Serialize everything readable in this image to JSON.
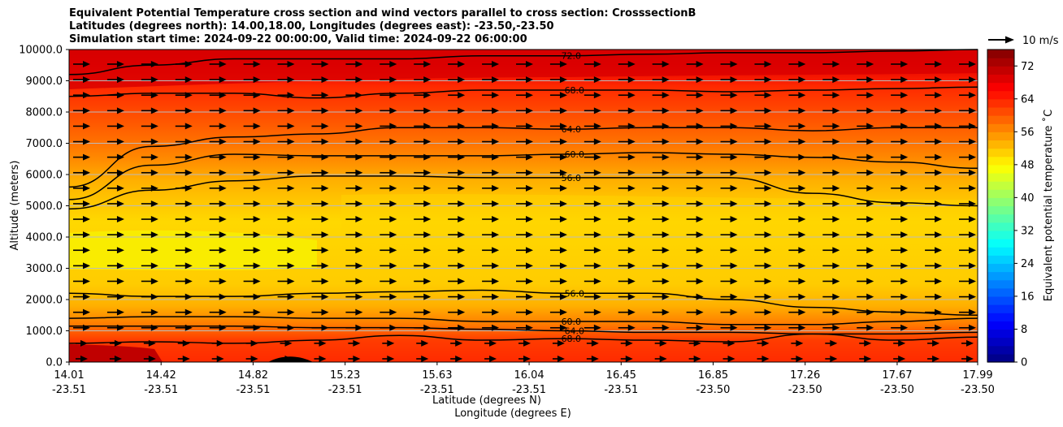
{
  "chart_data": {
    "type": "heatmap",
    "title_lines": [
      "Equivalent Potential Temperature cross section and wind vectors parallel to cross section: CrosssectionB",
      "Latitudes (degrees north): 14.00,18.00, Longitudes (degrees east): -23.50,-23.50",
      "Simulation start time: 2024-09-22 00:00:00, Valid time: 2024-09-22 06:00:00"
    ],
    "ylabel": "Altitude (meters)",
    "xlabel_lat": "Latitude (degrees N)",
    "xlabel_lon": "Longitude (degrees E)",
    "ylim": [
      0,
      10000
    ],
    "yticks": [
      "0.0",
      "1000.0",
      "2000.0",
      "3000.0",
      "4000.0",
      "5000.0",
      "6000.0",
      "7000.0",
      "8000.0",
      "9000.0",
      "10000.0"
    ],
    "xticks_lat": [
      "14.01",
      "14.42",
      "14.82",
      "15.23",
      "15.63",
      "16.04",
      "16.45",
      "16.85",
      "17.26",
      "17.67",
      "17.99"
    ],
    "xticks_lon": [
      "-23.51",
      "-23.51",
      "-23.51",
      "-23.51",
      "-23.51",
      "-23.51",
      "-23.51",
      "-23.50",
      "-23.50",
      "-23.50",
      "-23.50"
    ],
    "colorbar": {
      "label": "Equivalent potential temperature ˚C",
      "ticks": [
        "0",
        "8",
        "16",
        "24",
        "32",
        "40",
        "48",
        "56",
        "64",
        "72"
      ],
      "range": [
        0,
        76
      ]
    },
    "quiver_key": "10 m/s",
    "grid": "horizontal",
    "contours": [
      {
        "label": "72.0",
        "altitudes": [
          9200,
          9500,
          9700,
          9700,
          9700,
          9800,
          9800,
          9850,
          9900,
          9900,
          9950,
          10000
        ]
      },
      {
        "label": "68.0",
        "altitudes": [
          8500,
          8600,
          8600,
          8450,
          8600,
          8700,
          8700,
          8700,
          8650,
          8700,
          8750,
          8800
        ]
      },
      {
        "label": "64.0",
        "altitudes": [
          5600,
          6900,
          7200,
          7300,
          7500,
          7500,
          7450,
          7500,
          7500,
          7400,
          7500,
          7500
        ]
      },
      {
        "label": "60.0",
        "altitudes": [
          5200,
          6300,
          6650,
          6600,
          6600,
          6600,
          6650,
          6700,
          6650,
          6550,
          6400,
          6200
        ]
      },
      {
        "label": "56.0",
        "altitudes": [
          4900,
          5500,
          5800,
          5950,
          5950,
          5900,
          5900,
          5900,
          5900,
          5400,
          5100,
          5000
        ]
      },
      {
        "label": "56.0",
        "altitudes": [
          2200,
          2100,
          2100,
          2200,
          2250,
          2300,
          2200,
          2200,
          2000,
          1750,
          1600,
          1500
        ]
      },
      {
        "label": "60.0",
        "altitudes": [
          1400,
          1450,
          1450,
          1400,
          1400,
          1300,
          1300,
          1300,
          1200,
          1200,
          1300,
          1400
        ]
      },
      {
        "label": "64.0",
        "altitudes": [
          1150,
          1150,
          1150,
          1100,
          1100,
          1050,
          1000,
          950,
          950,
          900,
          900,
          950
        ]
      },
      {
        "label": "68.0",
        "altitudes": [
          600,
          650,
          600,
          700,
          850,
          700,
          750,
          700,
          650,
          900,
          700,
          800
        ]
      }
    ]
  }
}
